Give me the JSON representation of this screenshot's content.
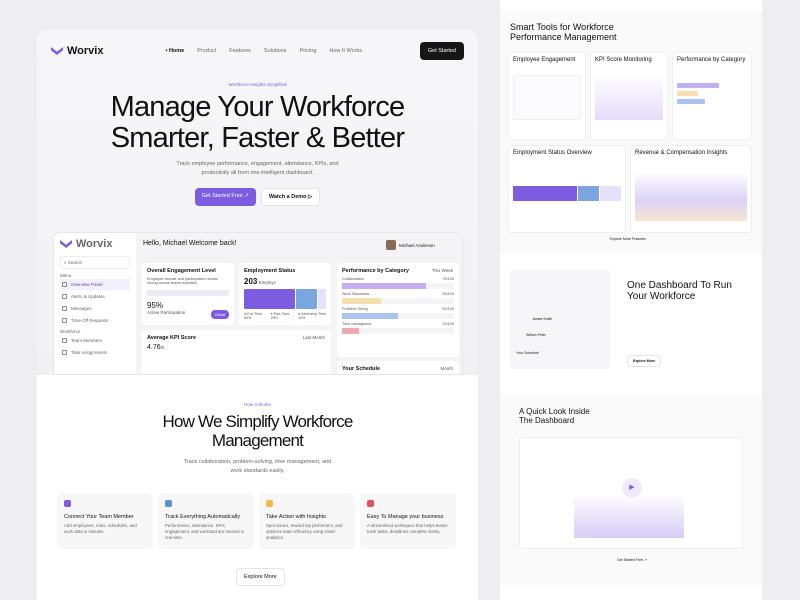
{
  "nav": {
    "brand": "Worvix",
    "links": [
      "Home",
      "Product",
      "Features",
      "Solutions",
      "Pricing",
      "How It Works"
    ],
    "cta": "Get Started"
  },
  "hero": {
    "eyebrow": "Workforce Insights Simplified",
    "title_line1": "Manage Your Workforce",
    "title_line2": "Smarter, Faster & Better",
    "subtitle_line1": "Track employee performance, engagement, attendance, KPIs, and",
    "subtitle_line2": "productivity all from one intelligent dashboard.",
    "primary_cta": "Get Started Free ↗",
    "secondary_cta": "Watch a Demo ▷"
  },
  "dashboard": {
    "brand": "Worvix",
    "greeting": "Hello, Michael Welcome back!",
    "search_placeholder": "Search",
    "user_name": "Michael Anderson",
    "menu_label": "Menu",
    "menu": [
      "Overview Panel",
      "Alerts & Updates",
      "Messages",
      "Time Off Requests"
    ],
    "workforce_label": "Workforce",
    "workforce": [
      "Team Members",
      "Task Assignments"
    ],
    "engagement": {
      "title": "Overall Engagement Level",
      "desc": "Employee morale and participation remain strong across teams activities.",
      "value": "95%",
      "label": "Active Participation",
      "badge": "Great",
      "level": 95
    },
    "employment": {
      "title": "Employment Status",
      "count": "203",
      "unit": "Employs",
      "legend": [
        {
          "name": "Full-Time",
          "pct": "60%",
          "value": 60,
          "color": "#7c5ce0"
        },
        {
          "name": "Part-Time",
          "pct": "25%",
          "value": 25,
          "color": "#7aa5e0"
        },
        {
          "name": "Internship-Time",
          "pct": "10%",
          "value": 10,
          "color": "#e6e0fa"
        }
      ]
    },
    "kpi": {
      "title": "Average KPI Score",
      "value": "4.76",
      "suffix": "/5",
      "filter": "Last Month"
    },
    "category": {
      "title": "Performance by Category",
      "filter": "This Week",
      "items": [
        {
          "name": "Collaboration",
          "score": "75/100",
          "value": 75,
          "color": "#c2aef0"
        },
        {
          "name": "Work Standards",
          "score": "35/100",
          "value": 35,
          "color": "#f6dfae"
        },
        {
          "name": "Problem-Slving",
          "score": "50/100",
          "value": 50,
          "color": "#a9c5ee"
        },
        {
          "name": "Time managment",
          "score": "15/100",
          "value": 15,
          "color": "#f0a9ae"
        }
      ]
    },
    "schedule": {
      "title": "Your Schedule",
      "filter": "Month"
    }
  },
  "how": {
    "eyebrow": "How It Works",
    "title_line1": "How We Simplify Workforce",
    "title_line2": "Management",
    "subtitle_line1": "Track collaboration, problem-solving, time management, and",
    "subtitle_line2": "work standards easily.",
    "steps": [
      {
        "title": "Connect Your Team Member",
        "desc": "Add employees, roles, schedules, and work data in minutes.",
        "color": "#7c5ce0"
      },
      {
        "title": "Track Everything Automatically",
        "desc": "Performance, attendance, KPIs, engagement, and workload are tracked in real-time.",
        "color": "#5b8fd6"
      },
      {
        "title": "Take Action with Insights",
        "desc": "Spot issues, reward top performers, and optimize team efficiency using smart analytics.",
        "color": "#f2b84b"
      },
      {
        "title": "Easy To Manage your business",
        "desc": "A streamlined workspace that helps teams track tasks, deadlines complete clarity.",
        "color": "#e0525c"
      }
    ],
    "cta": "Explore More"
  },
  "tools": {
    "title_line1": "Smart Tools for Workforce",
    "title_line2": "Performance Management",
    "features": [
      "Employee Engagement",
      "KPI Score Monitoring",
      "Performance by Category",
      "Employment Status Overview",
      "Revenue & Compensation Insights"
    ],
    "cta": "Explore More Features"
  },
  "one": {
    "title_line1": "One Dashboard To Run",
    "title_line2": "Your Workforce",
    "cta": "Explore More",
    "people": [
      "James Smith",
      "Wilson Peter"
    ],
    "schedule": "Your Schedule"
  },
  "quick": {
    "title_line1": "A Quick Look Inside",
    "title_line2": "The Dashboard",
    "cta": "Get Started Free ↗"
  }
}
